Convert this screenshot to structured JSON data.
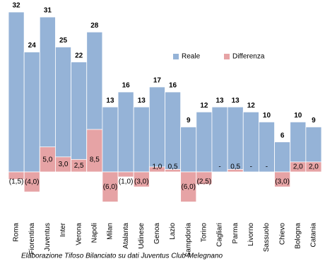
{
  "chart_data": {
    "type": "bar",
    "categories": [
      "Roma",
      "Fiorentina",
      "Juventus",
      "Inter",
      "Verona",
      "Napoli",
      "Milan",
      "Atalanta",
      "Udinese",
      "Genoa",
      "Lazio",
      "Sampdoria",
      "Torino",
      "Cagliari",
      "Parma",
      "Livorno",
      "Sassuolo",
      "Chievo",
      "Bologna",
      "Catania"
    ],
    "series": [
      {
        "name": "Reale",
        "color": "#95b3d7",
        "values": [
          32,
          24,
          31,
          25,
          22,
          28,
          13,
          16,
          13,
          17,
          16,
          9,
          12,
          13,
          13,
          12,
          10,
          6,
          10,
          9
        ]
      },
      {
        "name": "Differenza",
        "color": "#e6a3a5",
        "values": [
          -1.5,
          -4.0,
          5.0,
          3.0,
          2.5,
          8.5,
          -6.0,
          -1.0,
          -3.0,
          1.0,
          0.5,
          -6.0,
          -2.5,
          0,
          0.5,
          0,
          0,
          -3.0,
          2.0,
          2.0
        ],
        "value_labels": [
          "(1,5)",
          "(4,0)",
          "5,0",
          "3,0",
          "2,5",
          "8,5",
          "(6,0)",
          "(1,0)",
          "(3,0)",
          "1,0",
          "0,5",
          "(6,0)",
          "(2,5)",
          "-",
          "0,5",
          "-",
          "-",
          "(3,0)",
          "2,0",
          "2,0"
        ]
      }
    ],
    "legend_position": "upper right",
    "note": "Elaborazione Tifoso Bilanciato su dati Juventus Club Melegnano"
  }
}
